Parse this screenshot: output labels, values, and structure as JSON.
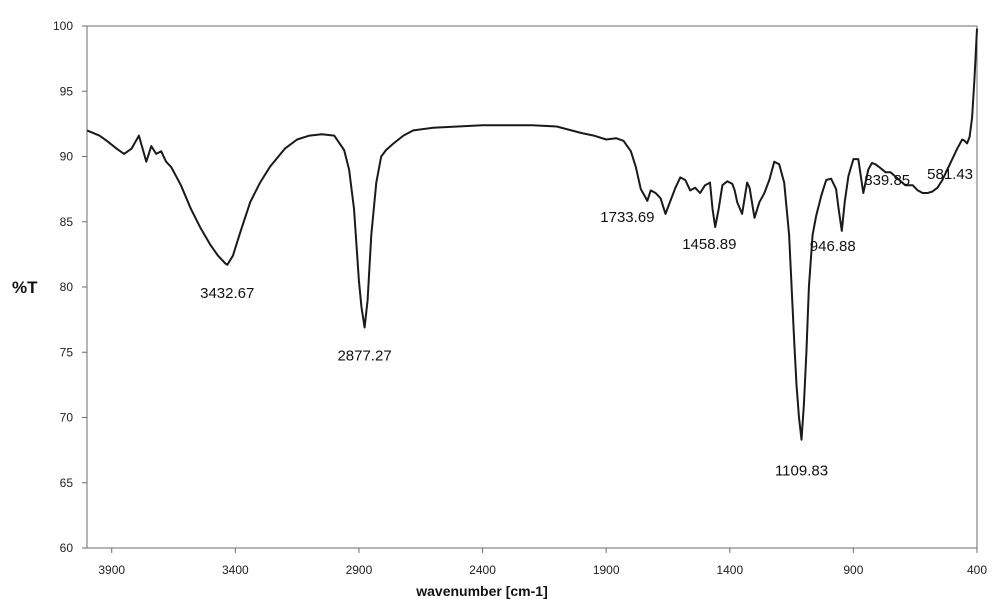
{
  "chart_data": {
    "type": "line",
    "xlabel": "wavenumber [cm-1]",
    "ylabel": "%T",
    "xlim": [
      4000,
      400
    ],
    "ylim": [
      60,
      100
    ],
    "x_reversed": true,
    "xticks": [
      3900,
      3400,
      2900,
      2400,
      1900,
      1400,
      900,
      400
    ],
    "yticks": [
      60,
      65,
      70,
      75,
      80,
      85,
      90,
      95,
      100
    ],
    "grid": false,
    "legend": "none",
    "line_color": "#1a1a1a",
    "series": [
      {
        "x": [
          4000,
          3950,
          3920,
          3880,
          3850,
          3820,
          3790,
          3760,
          3740,
          3720,
          3700,
          3680,
          3660,
          3620,
          3580,
          3540,
          3500,
          3470,
          3440,
          3432.67,
          3410,
          3380,
          3340,
          3300,
          3260,
          3200,
          3150,
          3100,
          3050,
          3000,
          2960,
          2940,
          2920,
          2900,
          2890,
          2877.27,
          2865,
          2850,
          2830,
          2810,
          2790,
          2760,
          2720,
          2680,
          2600,
          2500,
          2400,
          2300,
          2200,
          2100,
          2000,
          1950,
          1900,
          1860,
          1830,
          1800,
          1780,
          1760,
          1745,
          1733.69,
          1720,
          1700,
          1680,
          1660,
          1640,
          1620,
          1600,
          1580,
          1560,
          1540,
          1520,
          1500,
          1480,
          1470,
          1458.89,
          1445,
          1430,
          1410,
          1390,
          1380,
          1370,
          1350,
          1330,
          1320,
          1300,
          1280,
          1260,
          1240,
          1220,
          1200,
          1180,
          1160,
          1150,
          1140,
          1130,
          1120,
          1109.83,
          1100,
          1090,
          1080,
          1065,
          1050,
          1030,
          1010,
          990,
          970,
          960,
          946.88,
          935,
          920,
          900,
          880,
          870,
          860,
          839.85,
          825,
          810,
          790,
          770,
          750,
          720,
          690,
          660,
          640,
          620,
          600,
          581.43,
          560,
          540,
          520,
          500,
          480,
          460,
          450,
          440,
          430,
          420,
          410,
          400
        ],
        "values": [
          92.0,
          91.6,
          91.2,
          90.6,
          90.2,
          90.6,
          91.6,
          89.6,
          90.8,
          90.2,
          90.4,
          89.6,
          89.2,
          87.8,
          86.0,
          84.5,
          83.2,
          82.4,
          81.8,
          81.7,
          82.4,
          84.2,
          86.5,
          88.0,
          89.2,
          90.6,
          91.3,
          91.6,
          91.7,
          91.6,
          90.5,
          89.0,
          86.0,
          80.5,
          78.5,
          76.9,
          79.0,
          84.0,
          88.0,
          90.0,
          90.5,
          91.0,
          91.6,
          92.0,
          92.2,
          92.3,
          92.4,
          92.4,
          92.4,
          92.3,
          91.8,
          91.6,
          91.3,
          91.4,
          91.2,
          90.4,
          89.2,
          87.5,
          87.0,
          86.6,
          87.4,
          87.2,
          86.8,
          85.6,
          86.6,
          87.6,
          88.4,
          88.2,
          87.4,
          87.6,
          87.2,
          87.8,
          88.0,
          86.0,
          84.6,
          86.0,
          87.8,
          88.1,
          87.9,
          87.4,
          86.5,
          85.6,
          88.0,
          87.6,
          85.3,
          86.5,
          87.2,
          88.2,
          89.6,
          89.4,
          88.0,
          84.0,
          80.0,
          76.0,
          72.5,
          70.0,
          68.3,
          71.0,
          75.0,
          80.0,
          84.0,
          85.5,
          87.0,
          88.2,
          88.3,
          87.5,
          86.0,
          84.3,
          86.5,
          88.5,
          89.8,
          89.8,
          88.5,
          87.2,
          89.0,
          89.5,
          89.4,
          89.1,
          88.8,
          88.8,
          88.3,
          87.8,
          87.8,
          87.4,
          87.2,
          87.2,
          87.3,
          87.6,
          88.2,
          89.0,
          89.8,
          90.6,
          91.3,
          91.2,
          91.0,
          91.5,
          93.0,
          96.0,
          99.8
        ]
      }
    ],
    "annotations": [
      {
        "text": "3432.67",
        "x": 3432.67,
        "y": 81.7
      },
      {
        "text": "2877.27",
        "x": 2877.27,
        "y": 76.9
      },
      {
        "text": "1733.69",
        "x": 1733.69,
        "y": 86.6
      },
      {
        "text": "1458.89",
        "x": 1458.89,
        "y": 84.6
      },
      {
        "text": "1109.83",
        "x": 1109.83,
        "y": 68.3
      },
      {
        "text": "946.88",
        "x": 946.88,
        "y": 84.3
      },
      {
        "text": "839.85",
        "x": 839.85,
        "y": 87.2
      },
      {
        "text": "581.43",
        "x": 581.43,
        "y": 87.2
      }
    ]
  }
}
